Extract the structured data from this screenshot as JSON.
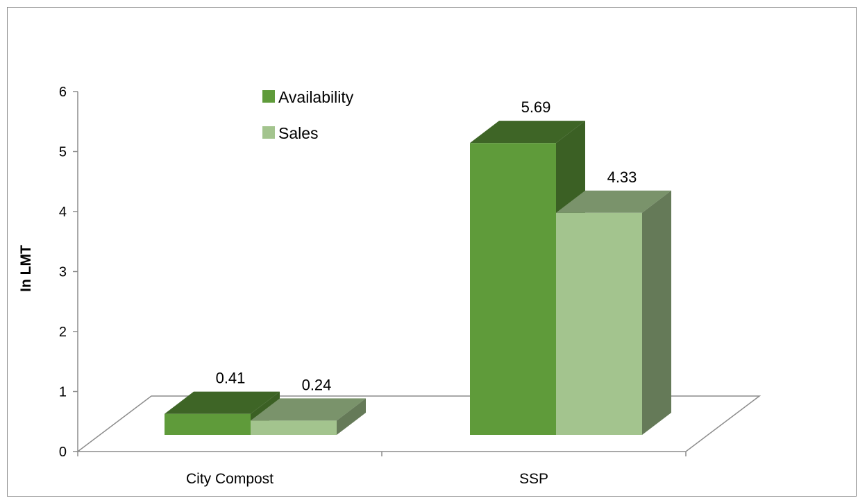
{
  "chart_data": {
    "type": "bar",
    "style": "3d-clustered-column",
    "title": "",
    "xlabel": "",
    "ylabel": "In LMT",
    "ylim": [
      0,
      6
    ],
    "yticks": [
      0,
      1,
      2,
      3,
      4,
      5,
      6
    ],
    "categories": [
      "City Compost",
      "SSP"
    ],
    "series": [
      {
        "name": "Availability",
        "values": [
          0.41,
          5.69
        ],
        "color": "#5f9b3a"
      },
      {
        "name": "Sales",
        "values": [
          0.24,
          4.33
        ],
        "color": "#a3c48e"
      }
    ],
    "data_labels": true,
    "grid": false,
    "legend_position": "top-left-inside"
  }
}
